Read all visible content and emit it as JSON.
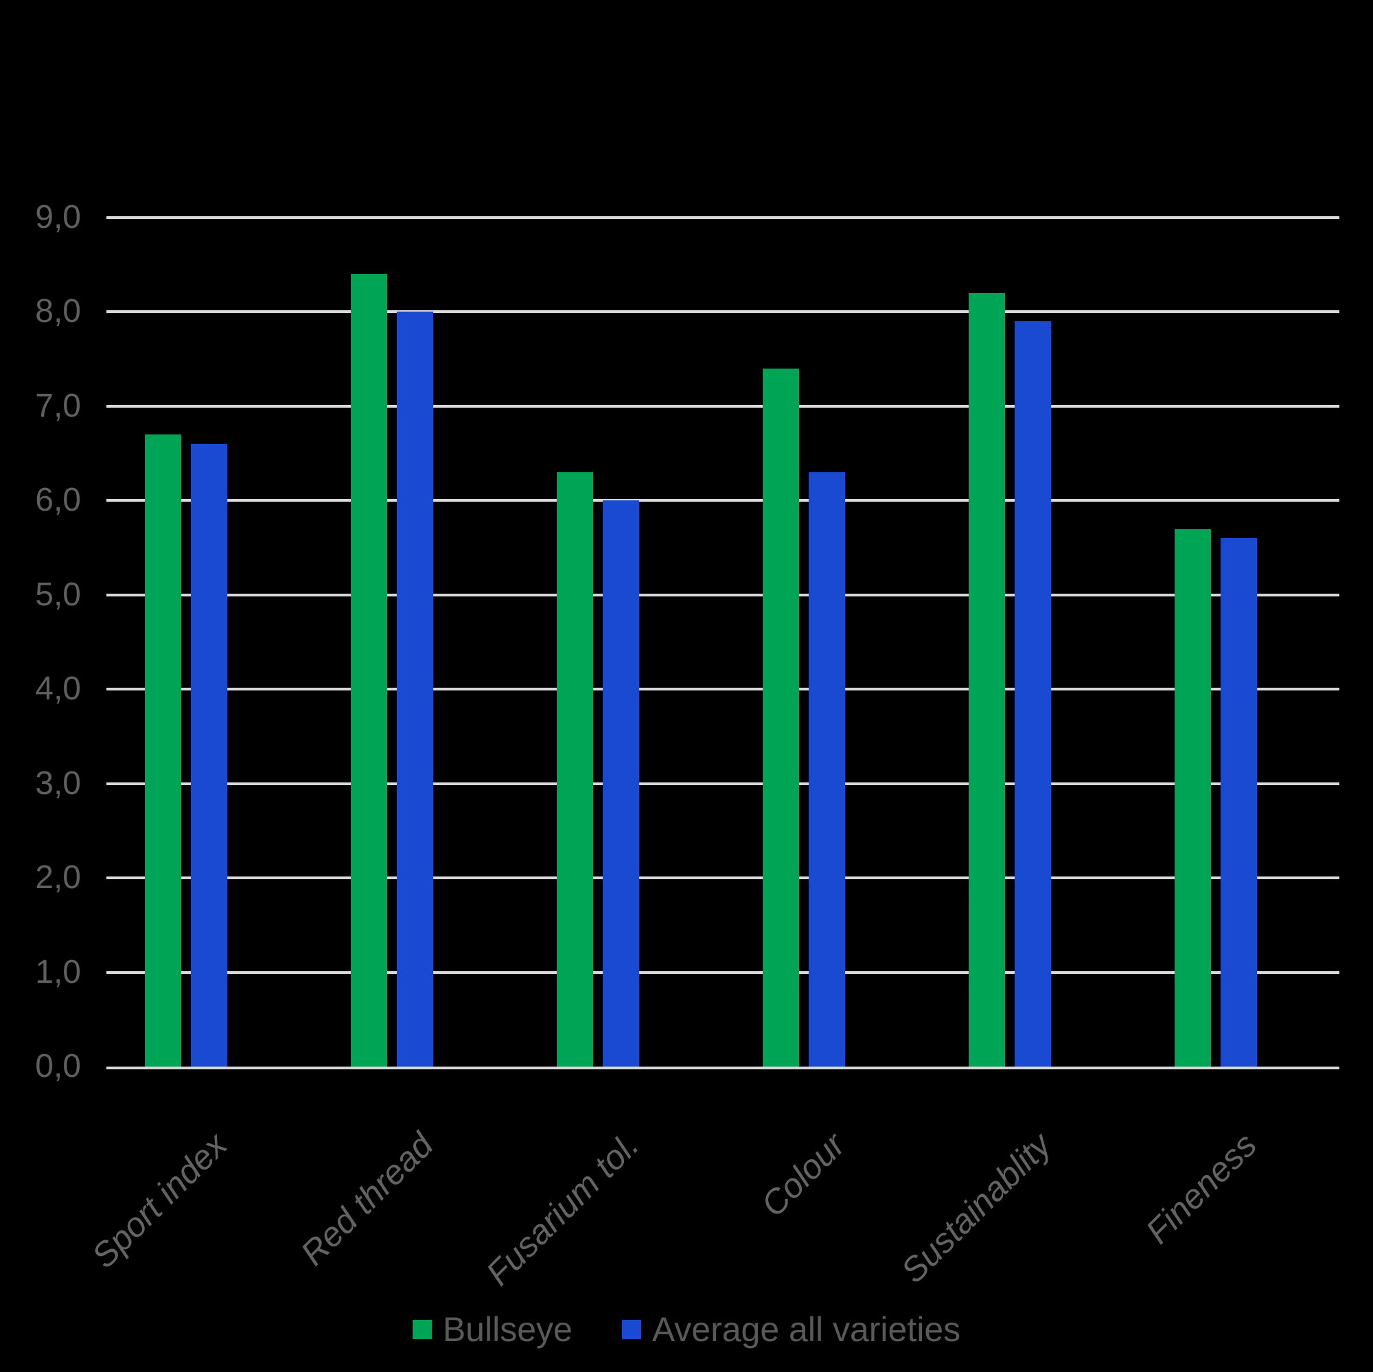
{
  "chart_data": {
    "type": "bar",
    "title": "",
    "categories": [
      "Sport index",
      "Red thread",
      "Fusarium tol.",
      "Colour",
      "Sustainablity",
      "Fineness"
    ],
    "series": [
      {
        "name": "Bullseye",
        "color": "#00A455",
        "values": [
          6.7,
          8.4,
          6.3,
          7.4,
          8.2,
          5.7
        ]
      },
      {
        "name": "Average all varieties",
        "color": "#1B4AD2",
        "values": [
          6.6,
          8.0,
          6.0,
          6.3,
          7.9,
          5.6
        ]
      }
    ],
    "ylim": [
      0,
      9
    ],
    "ytick_step": 1.0,
    "ytick_labels": [
      "0,0",
      "1,0",
      "2,0",
      "3,0",
      "4,0",
      "5,0",
      "6,0",
      "7,0",
      "8,0",
      "9,0"
    ],
    "decimal_separator": ",",
    "grid": true,
    "legend_position": "bottom",
    "colors": {
      "background": "#000000",
      "gridline": "#d9d9d9",
      "tick_label": "#5f5f5f",
      "category_label": "#636363",
      "legend_text": "#595959"
    }
  }
}
